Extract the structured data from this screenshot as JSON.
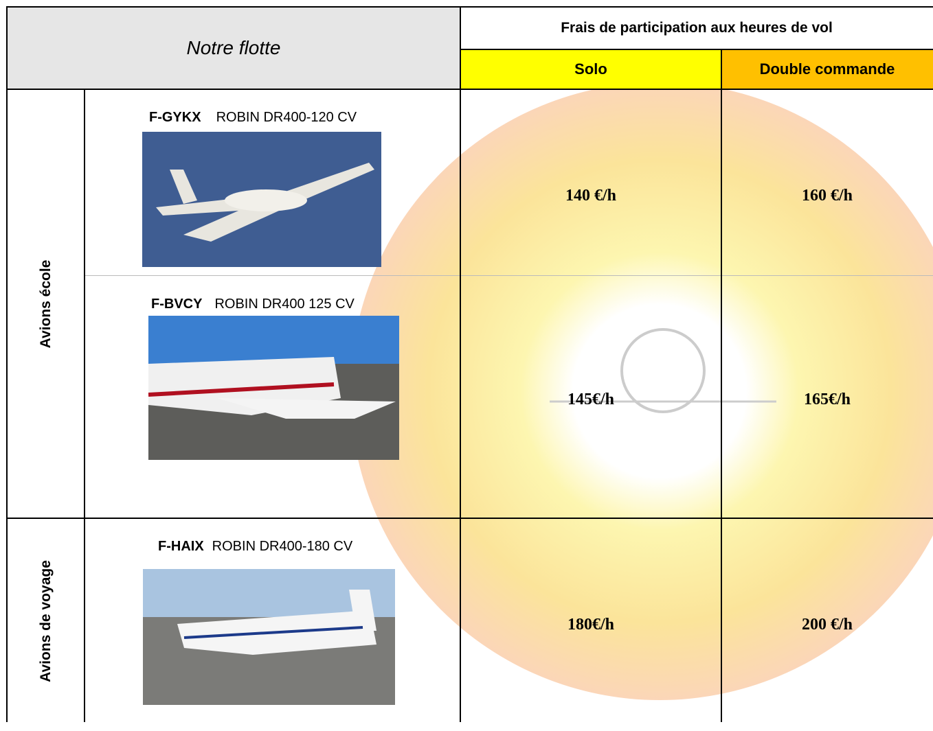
{
  "header": {
    "title": "Notre flotte",
    "fees_title": "Frais de participation aux heures de vol",
    "columns": [
      "Solo",
      "Double commande"
    ]
  },
  "groups": [
    {
      "label": "Avions école",
      "aircraft": [
        {
          "registration": "F-GYKX",
          "model": "ROBIN DR400-120 CV",
          "solo": "140 €/h",
          "dual": "160 €/h"
        },
        {
          "registration": "F-BVCY",
          "model": "ROBIN DR400 125 CV",
          "solo": "145€/h",
          "dual": "165€/h"
        }
      ]
    },
    {
      "label": "Avions de voyage",
      "aircraft": [
        {
          "registration": "F-HAIX",
          "model": "ROBIN DR400-180 CV",
          "solo": "180€/h",
          "dual": "200 €/h"
        }
      ]
    }
  ]
}
